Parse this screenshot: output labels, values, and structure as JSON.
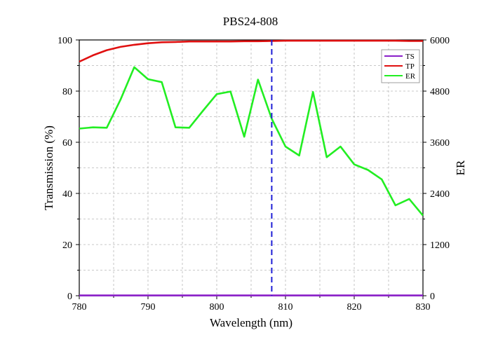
{
  "chart_data": {
    "type": "line",
    "title": "PBS24-808",
    "xlabel": "Wavelength (nm)",
    "ylabel": "Transmission (%)",
    "y2label": "ER",
    "xlim": [
      780,
      830
    ],
    "ylim": [
      0,
      100
    ],
    "y2lim": [
      0,
      6000
    ],
    "x_ticks": [
      "780",
      "790",
      "800",
      "810",
      "820",
      "830"
    ],
    "y_ticks": [
      "0",
      "20",
      "40",
      "60",
      "80",
      "100"
    ],
    "y2_ticks": [
      "0",
      "1200",
      "2400",
      "3600",
      "4800",
      "6000"
    ],
    "grid": true,
    "legend_position": "top-right",
    "reference_line": {
      "x": 808,
      "color": "#1f1fd6",
      "style": "dashed"
    },
    "series": [
      {
        "name": "TS",
        "axis": "left",
        "color": "#8a1fc9",
        "x": [
          780,
          785,
          790,
          795,
          800,
          805,
          810,
          815,
          820,
          825,
          830
        ],
        "y": [
          0.1,
          0.1,
          0.1,
          0.1,
          0.1,
          0.1,
          0.1,
          0.1,
          0.1,
          0.1,
          0.1
        ]
      },
      {
        "name": "TP",
        "axis": "left",
        "color": "#e01010",
        "x": [
          780,
          782,
          784,
          786,
          788,
          790,
          792,
          794,
          796,
          798,
          800,
          802,
          804,
          806,
          808,
          810,
          812,
          814,
          816,
          818,
          820,
          822,
          824,
          826,
          828,
          830
        ],
        "y": [
          91.5,
          94,
          96,
          97.3,
          98.1,
          98.7,
          99.1,
          99.2,
          99.4,
          99.4,
          99.4,
          99.4,
          99.5,
          99.5,
          99.6,
          99.7,
          99.7,
          99.7,
          99.7,
          99.7,
          99.7,
          99.7,
          99.7,
          99.7,
          99.6,
          99.6
        ]
      },
      {
        "name": "ER",
        "axis": "right",
        "color": "#22ee22",
        "x": [
          780,
          782,
          784,
          786,
          788,
          790,
          792,
          794,
          796,
          798,
          800,
          802,
          804,
          806,
          808,
          810,
          812,
          814,
          816,
          818,
          820,
          822,
          824,
          826,
          828,
          830
        ],
        "y": [
          3920,
          3950,
          3940,
          4600,
          5360,
          5080,
          5010,
          3950,
          3940,
          4340,
          4730,
          4790,
          3730,
          5070,
          4150,
          3500,
          3290,
          4780,
          3250,
          3500,
          3080,
          2950,
          2730,
          2120,
          2270,
          1880
        ]
      }
    ]
  }
}
